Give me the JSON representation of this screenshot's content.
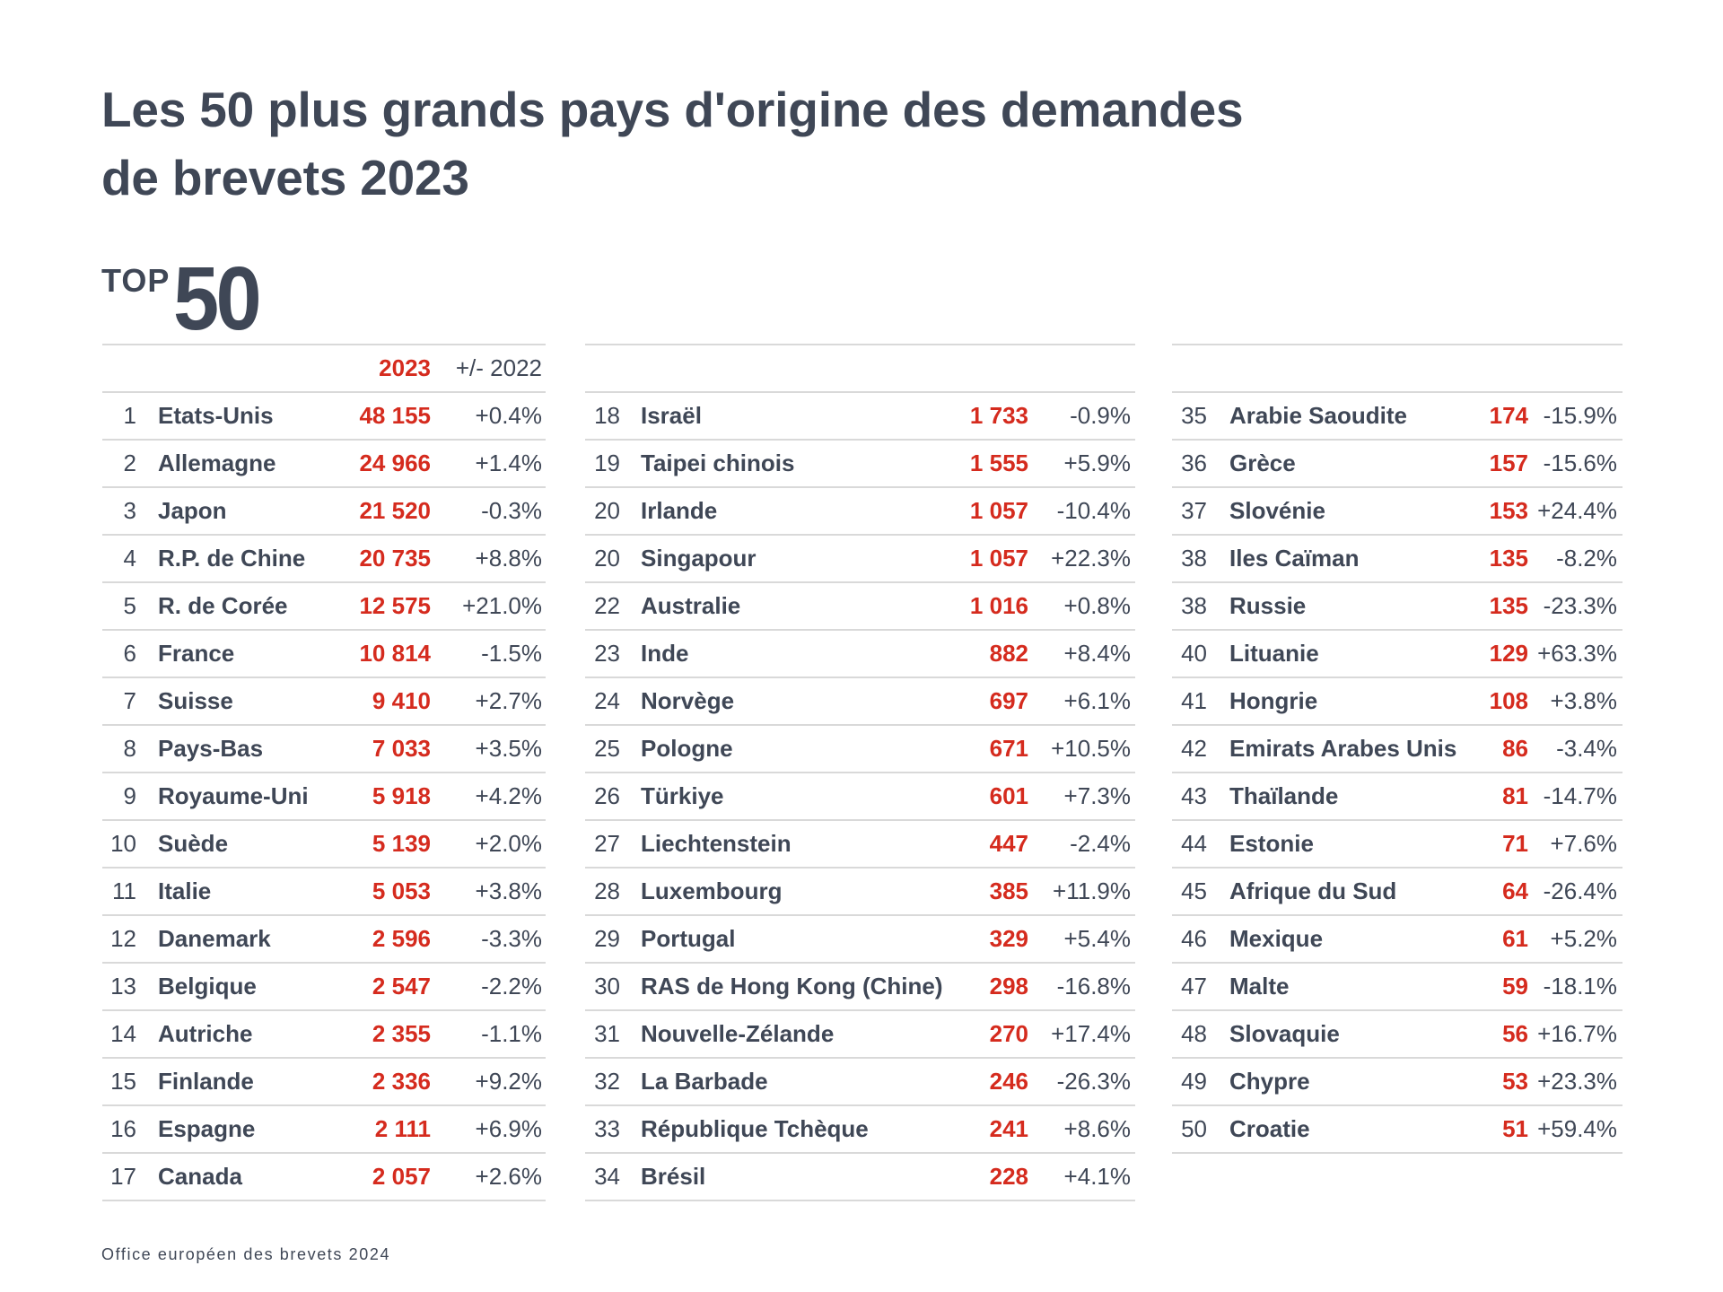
{
  "title_line1": "Les 50 plus grands pays d'origine des demandes",
  "title_line2": "de brevets 2023",
  "badge": {
    "top_word": "TOP",
    "number": "50"
  },
  "header": {
    "year_label": "2023",
    "delta_label": "+/- 2022"
  },
  "colors": {
    "accent_red": "#D52B1E",
    "text_dark": "#3F4756",
    "rule_grey": "#D9D9D9"
  },
  "columns": [
    {
      "rows": [
        {
          "rank": "1",
          "country": "Etats-Unis",
          "applications": "48 155",
          "change": "+0.4%"
        },
        {
          "rank": "2",
          "country": "Allemagne",
          "applications": "24 966",
          "change": "+1.4%"
        },
        {
          "rank": "3",
          "country": "Japon",
          "applications": "21 520",
          "change": "-0.3%"
        },
        {
          "rank": "4",
          "country": "R.P. de Chine",
          "applications": "20 735",
          "change": "+8.8%"
        },
        {
          "rank": "5",
          "country": "R. de Corée",
          "applications": "12 575",
          "change": "+21.0%"
        },
        {
          "rank": "6",
          "country": "France",
          "applications": "10 814",
          "change": "-1.5%"
        },
        {
          "rank": "7",
          "country": "Suisse",
          "applications": "9 410",
          "change": "+2.7%"
        },
        {
          "rank": "8",
          "country": "Pays-Bas",
          "applications": "7 033",
          "change": "+3.5%"
        },
        {
          "rank": "9",
          "country": "Royaume-Uni",
          "applications": "5 918",
          "change": "+4.2%"
        },
        {
          "rank": "10",
          "country": "Suède",
          "applications": "5 139",
          "change": "+2.0%"
        },
        {
          "rank": "11",
          "country": "Italie",
          "applications": "5 053",
          "change": "+3.8%"
        },
        {
          "rank": "12",
          "country": "Danemark",
          "applications": "2 596",
          "change": "-3.3%"
        },
        {
          "rank": "13",
          "country": "Belgique",
          "applications": "2 547",
          "change": "-2.2%"
        },
        {
          "rank": "14",
          "country": "Autriche",
          "applications": "2 355",
          "change": "-1.1%"
        },
        {
          "rank": "15",
          "country": "Finlande",
          "applications": "2 336",
          "change": "+9.2%"
        },
        {
          "rank": "16",
          "country": "Espagne",
          "applications": "2 111",
          "change": "+6.9%"
        },
        {
          "rank": "17",
          "country": "Canada",
          "applications": "2 057",
          "change": "+2.6%"
        }
      ]
    },
    {
      "rows": [
        {
          "rank": "18",
          "country": "Israël",
          "applications": "1 733",
          "change": "-0.9%"
        },
        {
          "rank": "19",
          "country": "Taipei chinois",
          "applications": "1 555",
          "change": "+5.9%"
        },
        {
          "rank": "20",
          "country": "Irlande",
          "applications": "1 057",
          "change": "-10.4%"
        },
        {
          "rank": "20",
          "country": "Singapour",
          "applications": "1 057",
          "change": "+22.3%"
        },
        {
          "rank": "22",
          "country": "Australie",
          "applications": "1 016",
          "change": "+0.8%"
        },
        {
          "rank": "23",
          "country": "Inde",
          "applications": "882",
          "change": "+8.4%"
        },
        {
          "rank": "24",
          "country": "Norvège",
          "applications": "697",
          "change": "+6.1%"
        },
        {
          "rank": "25",
          "country": "Pologne",
          "applications": "671",
          "change": "+10.5%"
        },
        {
          "rank": "26",
          "country": "Türkiye",
          "applications": "601",
          "change": "+7.3%"
        },
        {
          "rank": "27",
          "country": "Liechtenstein",
          "applications": "447",
          "change": "-2.4%"
        },
        {
          "rank": "28",
          "country": "Luxembourg",
          "applications": "385",
          "change": "+11.9%"
        },
        {
          "rank": "29",
          "country": "Portugal",
          "applications": "329",
          "change": "+5.4%"
        },
        {
          "rank": "30",
          "country": "RAS de Hong Kong (Chine)",
          "applications": "298",
          "change": "-16.8%"
        },
        {
          "rank": "31",
          "country": "Nouvelle-Zélande",
          "applications": "270",
          "change": "+17.4%"
        },
        {
          "rank": "32",
          "country": "La Barbade",
          "applications": "246",
          "change": "-26.3%"
        },
        {
          "rank": "33",
          "country": "République Tchèque",
          "applications": "241",
          "change": "+8.6%"
        },
        {
          "rank": "34",
          "country": "Brésil",
          "applications": "228",
          "change": "+4.1%"
        }
      ]
    },
    {
      "rows": [
        {
          "rank": "35",
          "country": "Arabie Saoudite",
          "applications": "174",
          "change": "-15.9%"
        },
        {
          "rank": "36",
          "country": "Grèce",
          "applications": "157",
          "change": "-15.6%"
        },
        {
          "rank": "37",
          "country": "Slovénie",
          "applications": "153",
          "change": "+24.4%"
        },
        {
          "rank": "38",
          "country": "Iles Caïman",
          "applications": "135",
          "change": "-8.2%"
        },
        {
          "rank": "38",
          "country": "Russie",
          "applications": "135",
          "change": "-23.3%"
        },
        {
          "rank": "40",
          "country": "Lituanie",
          "applications": "129",
          "change": "+63.3%"
        },
        {
          "rank": "41",
          "country": "Hongrie",
          "applications": "108",
          "change": "+3.8%"
        },
        {
          "rank": "42",
          "country": "Emirats Arabes Unis",
          "applications": "86",
          "change": "-3.4%"
        },
        {
          "rank": "43",
          "country": "Thaïlande",
          "applications": "81",
          "change": "-14.7%"
        },
        {
          "rank": "44",
          "country": "Estonie",
          "applications": "71",
          "change": "+7.6%"
        },
        {
          "rank": "45",
          "country": "Afrique du Sud",
          "applications": "64",
          "change": "-26.4%"
        },
        {
          "rank": "46",
          "country": "Mexique",
          "applications": "61",
          "change": "+5.2%"
        },
        {
          "rank": "47",
          "country": "Malte",
          "applications": "59",
          "change": "-18.1%"
        },
        {
          "rank": "48",
          "country": "Slovaquie",
          "applications": "56",
          "change": "+16.7%"
        },
        {
          "rank": "49",
          "country": "Chypre",
          "applications": "53",
          "change": "+23.3%"
        },
        {
          "rank": "50",
          "country": "Croatie",
          "applications": "51",
          "change": "+59.4%"
        }
      ]
    }
  ],
  "footer": "Office européen des brevets 2024"
}
